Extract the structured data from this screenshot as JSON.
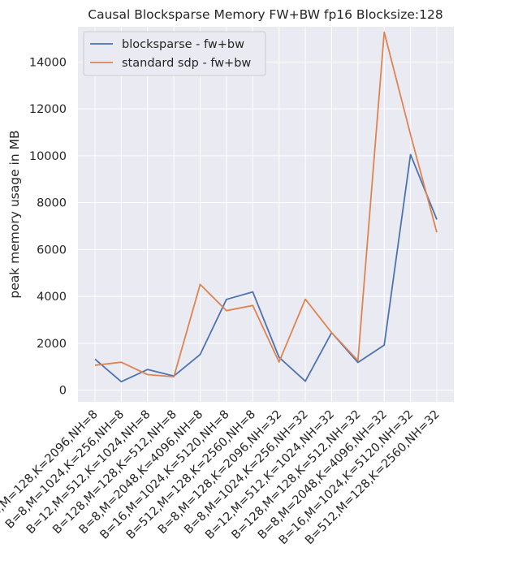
{
  "chart_data": {
    "type": "line",
    "title": "Causal Blocksparse Memory FW+BW fp16 Blocksize:128",
    "xlabel": "",
    "ylabel": "peak memory usage in MB",
    "ylim": [
      -500,
      15500
    ],
    "yticks": [
      0,
      2000,
      4000,
      6000,
      8000,
      10000,
      12000,
      14000
    ],
    "grid": true,
    "legend_position": "top-left",
    "categories": [
      "B=8,M=128,K=2096,NH=8",
      "B=8,M=1024,K=256,NH=8",
      "B=12,M=512,K=1024,NH=8",
      "B=128,M=128,K=512,NH=8",
      "B=8,M=2048,K=4096,NH=8",
      "B=16,M=1024,K=5120,NH=8",
      "B=512,M=128,K=2560,NH=8",
      "B=8,M=128,K=2096,NH=32",
      "B=8,M=1024,K=256,NH=32",
      "B=12,M=512,K=1024,NH=32",
      "B=128,M=128,K=512,NH=32",
      "B=8,M=2048,K=4096,NH=32",
      "B=16,M=1024,K=5120,NH=32",
      "B=512,M=128,K=2560,NH=32"
    ],
    "series": [
      {
        "name": "blocksparse - fw+bw",
        "color": "#4c72b0",
        "values": [
          1320,
          360,
          880,
          600,
          1520,
          3870,
          4190,
          1400,
          380,
          2450,
          1180,
          1920,
          10050,
          7280
        ]
      },
      {
        "name": "standard sdp - fw+bw",
        "color": "#dd8452",
        "values": [
          1060,
          1190,
          660,
          570,
          4510,
          3390,
          3610,
          1200,
          3880,
          2450,
          1260,
          15270,
          10900,
          6730
        ]
      }
    ]
  }
}
